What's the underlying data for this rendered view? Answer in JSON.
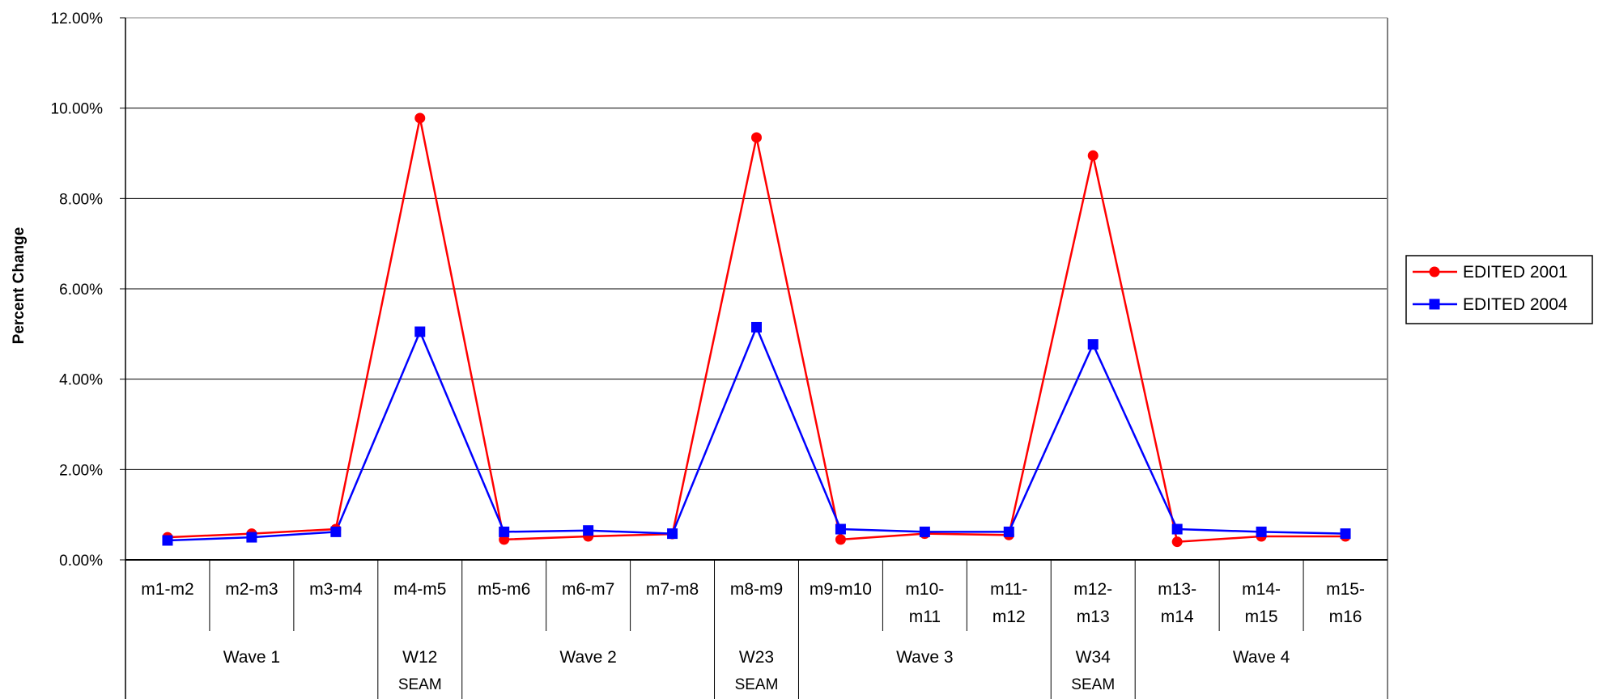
{
  "chart_data": {
    "type": "line",
    "title": "",
    "xlabel": "",
    "ylabel": "Percent Change",
    "ylim": [
      0,
      12
    ],
    "yticks": [
      "0.00%",
      "2.00%",
      "4.00%",
      "6.00%",
      "8.00%",
      "10.00%",
      "12.00%"
    ],
    "grid": "horizontal",
    "legend_position": "right",
    "categories": [
      [
        "m1-m2"
      ],
      [
        "m2-m3"
      ],
      [
        "m3-m4"
      ],
      [
        "m4-m5"
      ],
      [
        "m5-m6"
      ],
      [
        "m6-m7"
      ],
      [
        "m7-m8"
      ],
      [
        "m8-m9"
      ],
      [
        "m9-m10"
      ],
      [
        "m10-",
        "m11"
      ],
      [
        "m11-",
        "m12"
      ],
      [
        "m12-",
        "m13"
      ],
      [
        "m13-",
        "m14"
      ],
      [
        "m14-",
        "m15"
      ],
      [
        "m15-",
        "m16"
      ]
    ],
    "groups": [
      {
        "lines": [
          "Wave 1"
        ],
        "span": 3
      },
      {
        "lines": [
          "W12",
          "SEAM"
        ],
        "span": 1
      },
      {
        "lines": [
          "Wave 2"
        ],
        "span": 3
      },
      {
        "lines": [
          "W23",
          "SEAM"
        ],
        "span": 1
      },
      {
        "lines": [
          "Wave 3"
        ],
        "span": 3
      },
      {
        "lines": [
          "W34",
          "SEAM"
        ],
        "span": 1
      },
      {
        "lines": [
          "Wave 4"
        ],
        "span": 3
      }
    ],
    "series": [
      {
        "name": "EDITED 2001",
        "color": "#ff0000",
        "marker": "circle",
        "values": [
          0.5,
          0.58,
          0.68,
          9.78,
          0.45,
          0.52,
          0.57,
          9.35,
          0.45,
          0.58,
          0.55,
          8.95,
          0.4,
          0.52,
          0.52
        ]
      },
      {
        "name": "EDITED 2004",
        "color": "#0000ff",
        "marker": "square",
        "values": [
          0.43,
          0.5,
          0.62,
          5.05,
          0.62,
          0.65,
          0.58,
          5.15,
          0.68,
          0.62,
          0.62,
          4.77,
          0.68,
          0.62,
          0.58
        ]
      }
    ]
  }
}
